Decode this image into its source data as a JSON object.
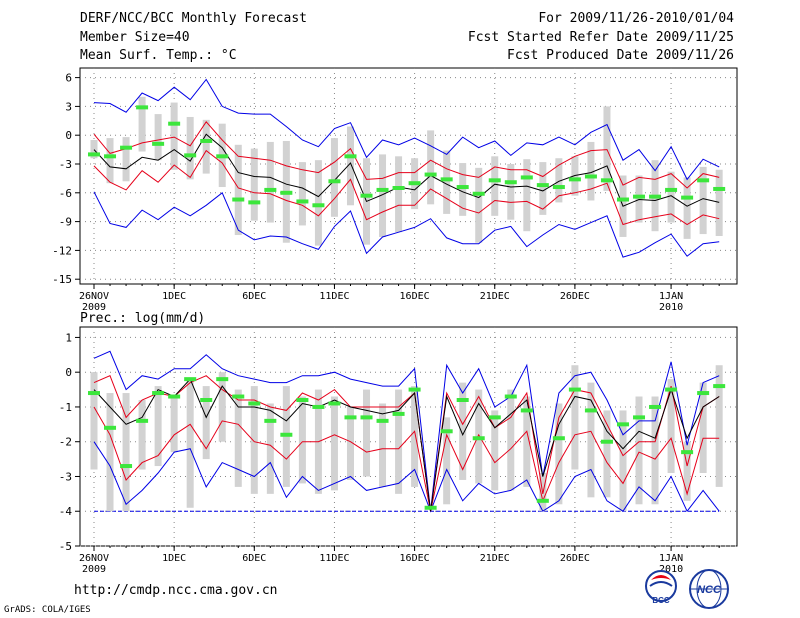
{
  "header": {
    "title": "DERF/NCC/BCC Monthly Forecast",
    "member_size": "Member Size=40",
    "variable": "Mean Surf. Temp.: °C",
    "period": "For 2009/11/26-2010/01/04",
    "start_date": "Fcst Started Refer Date 2009/11/25",
    "produced_date": "Fcst Produced Date 2009/11/26"
  },
  "footer": {
    "url": "http://cmdp.ncc.cma.gov.cn",
    "grads": "GrADS: COLA/IGES",
    "logo1_text": "BCC",
    "logo2_text": "NCC"
  },
  "colors": {
    "max_min": "#0000e6",
    "spread": "#e6001a",
    "mean": "#000000",
    "bar": "#d2d2d2",
    "obs": "#3ce63c",
    "grid": "#888888"
  },
  "chart_data": [
    {
      "type": "line",
      "title": "Mean Surf. Temp.: °C",
      "x": [
        "26NOV",
        "27NOV",
        "28NOV",
        "29NOV",
        "30NOV",
        "1DEC",
        "2DEC",
        "3DEC",
        "4DEC",
        "5DEC",
        "6DEC",
        "7DEC",
        "8DEC",
        "9DEC",
        "10DEC",
        "11DEC",
        "12DEC",
        "13DEC",
        "14DEC",
        "15DEC",
        "16DEC",
        "17DEC",
        "18DEC",
        "19DEC",
        "20DEC",
        "21DEC",
        "22DEC",
        "23DEC",
        "24DEC",
        "25DEC",
        "26DEC",
        "27DEC",
        "28DEC",
        "29DEC",
        "30DEC",
        "31DEC",
        "1JAN",
        "2JAN",
        "3JAN",
        "4JAN"
      ],
      "xticks": [
        {
          "i": 0,
          "label": "26NOV",
          "sub": "2009"
        },
        {
          "i": 5,
          "label": "1DEC"
        },
        {
          "i": 10,
          "label": "6DEC"
        },
        {
          "i": 15,
          "label": "11DEC"
        },
        {
          "i": 20,
          "label": "16DEC"
        },
        {
          "i": 25,
          "label": "21DEC"
        },
        {
          "i": 30,
          "label": "26DEC"
        },
        {
          "i": 36,
          "label": "1JAN",
          "sub": "2010"
        }
      ],
      "ylim": [
        -15.5,
        7
      ],
      "yticks": [
        6,
        3,
        0,
        -3,
        -6,
        -9,
        -12,
        -15
      ],
      "ytick_labels": [
        "6",
        "3",
        "0",
        "-3",
        "-6",
        "-9",
        "-12",
        "-15"
      ],
      "series": [
        {
          "name": "max",
          "values": [
            3.4,
            3.3,
            2.4,
            4.4,
            3.6,
            5.0,
            3.7,
            5.8,
            3.0,
            2.3,
            2.2,
            2.2,
            0.9,
            -0.5,
            -1.2,
            0.7,
            1.3,
            -2.3,
            -0.5,
            -1.0,
            -0.3,
            -1.1,
            -2.0,
            -0.2,
            -1.3,
            -0.6,
            -2.1,
            -0.8,
            -1.0,
            -0.2,
            -1.0,
            0.3,
            1.1,
            -2.6,
            -1.5,
            -3.7,
            -1.2,
            -4.6,
            -2.5,
            -3.3
          ]
        },
        {
          "name": "upper",
          "values": [
            0.1,
            -1.9,
            -1.4,
            -0.8,
            -0.5,
            -0.2,
            -1.1,
            1.4,
            -0.5,
            -2.2,
            -2.4,
            -2.6,
            -3.2,
            -3.6,
            -3.9,
            -2.8,
            -1.4,
            -4.6,
            -4.5,
            -3.9,
            -3.9,
            -2.6,
            -3.5,
            -4.1,
            -4.4,
            -3.3,
            -3.6,
            -3.6,
            -4.3,
            -3.1,
            -2.2,
            -1.6,
            -1.5,
            -5.2,
            -4.4,
            -4.6,
            -4.0,
            -5.5,
            -4.0,
            -4.4
          ]
        },
        {
          "name": "mean",
          "values": [
            -1.5,
            -3.3,
            -3.5,
            -2.3,
            -2.6,
            -1.5,
            -2.7,
            0.1,
            -1.3,
            -3.9,
            -4.3,
            -4.4,
            -5.1,
            -5.5,
            -6.4,
            -4.7,
            -2.9,
            -6.9,
            -6.2,
            -5.4,
            -5.7,
            -4.2,
            -5.1,
            -5.9,
            -6.5,
            -5.1,
            -5.4,
            -5.3,
            -5.8,
            -4.8,
            -4.2,
            -3.9,
            -3.2,
            -7.4,
            -6.7,
            -6.8,
            -6.3,
            -7.4,
            -6.6,
            -7.0
          ]
        },
        {
          "name": "lower",
          "values": [
            -3.2,
            -4.9,
            -5.7,
            -3.7,
            -4.9,
            -3.1,
            -4.4,
            -1.6,
            -2.9,
            -5.5,
            -6.0,
            -6.1,
            -6.8,
            -7.3,
            -8.4,
            -6.6,
            -4.6,
            -8.8,
            -8.0,
            -7.3,
            -7.3,
            -5.6,
            -6.6,
            -7.6,
            -8.1,
            -6.8,
            -7.0,
            -6.9,
            -7.7,
            -6.3,
            -6.0,
            -5.6,
            -5.0,
            -9.3,
            -8.8,
            -8.5,
            -8.2,
            -9.3,
            -8.3,
            -8.7
          ]
        },
        {
          "name": "min",
          "values": [
            -5.9,
            -9.2,
            -9.6,
            -7.8,
            -8.8,
            -7.5,
            -8.4,
            -7.3,
            -6.0,
            -9.9,
            -10.9,
            -10.5,
            -10.6,
            -11.3,
            -11.9,
            -9.5,
            -7.9,
            -12.3,
            -10.6,
            -10.1,
            -9.6,
            -8.7,
            -10.7,
            -11.3,
            -11.3,
            -9.9,
            -9.5,
            -11.6,
            -10.4,
            -9.3,
            -9.8,
            -9.1,
            -8.4,
            -12.7,
            -12.2,
            -11.2,
            -10.3,
            -12.6,
            -11.3,
            -11.1
          ]
        },
        {
          "name": "obs",
          "values": [
            -2.0,
            -2.2,
            -1.3,
            2.9,
            -0.9,
            1.2,
            -2.1,
            -0.6,
            -2.2,
            -6.7,
            -7.0,
            -5.7,
            -6.0,
            -6.9,
            -7.3,
            -4.8,
            -2.2,
            -6.3,
            -5.7,
            -5.5,
            -5.0,
            -4.1,
            -4.6,
            -5.4,
            -6.1,
            -4.7,
            -4.9,
            -4.4,
            -5.2,
            -5.4,
            -4.6,
            -4.3,
            -4.7,
            -6.7,
            -6.4,
            -6.4,
            -5.7,
            -6.5,
            -4.7,
            -5.6
          ]
        },
        {
          "name": "box_top",
          "values": [
            -0.5,
            -0.3,
            -0.2,
            4.0,
            2.2,
            3.4,
            1.9,
            1.6,
            1.2,
            -1.0,
            -1.4,
            -0.7,
            -0.6,
            -2.8,
            -2.6,
            -0.3,
            0.9,
            -2.4,
            -2.0,
            -2.2,
            -2.4,
            0.5,
            -1.6,
            -2.9,
            -3.4,
            -2.2,
            -3.0,
            -2.5,
            -2.8,
            -2.4,
            -2.2,
            -0.7,
            3.0,
            -4.2,
            -4.2,
            -2.6,
            -3.8,
            -4.4,
            -3.3,
            -3.6
          ]
        },
        {
          "name": "box_bottom",
          "values": [
            -2.4,
            -5.0,
            -4.8,
            -1.7,
            -2.6,
            -3.6,
            -4.6,
            -4.0,
            -5.4,
            -10.4,
            -8.9,
            -9.1,
            -11.2,
            -9.4,
            -11.5,
            -8.5,
            -7.3,
            -11.4,
            -10.6,
            -10.1,
            -7.7,
            -7.2,
            -8.2,
            -8.4,
            -11.2,
            -8.4,
            -8.8,
            -10.0,
            -8.3,
            -7.0,
            -6.3,
            -6.8,
            -5.8,
            -10.6,
            -9.1,
            -10.0,
            -9.1,
            -10.8,
            -10.3,
            -10.5
          ]
        }
      ]
    },
    {
      "type": "line",
      "title": "Prec.: log(mm/d)",
      "x": [
        "26NOV",
        "27NOV",
        "28NOV",
        "29NOV",
        "30NOV",
        "1DEC",
        "2DEC",
        "3DEC",
        "4DEC",
        "5DEC",
        "6DEC",
        "7DEC",
        "8DEC",
        "9DEC",
        "10DEC",
        "11DEC",
        "12DEC",
        "13DEC",
        "14DEC",
        "15DEC",
        "16DEC",
        "17DEC",
        "18DEC",
        "19DEC",
        "20DEC",
        "21DEC",
        "22DEC",
        "23DEC",
        "24DEC",
        "25DEC",
        "26DEC",
        "27DEC",
        "28DEC",
        "29DEC",
        "30DEC",
        "31DEC",
        "1JAN",
        "2JAN",
        "3JAN",
        "4JAN"
      ],
      "xticks": [
        {
          "i": 0,
          "label": "26NOV",
          "sub": "2009"
        },
        {
          "i": 5,
          "label": "1DEC"
        },
        {
          "i": 10,
          "label": "6DEC"
        },
        {
          "i": 15,
          "label": "11DEC"
        },
        {
          "i": 20,
          "label": "16DEC"
        },
        {
          "i": 25,
          "label": "21DEC"
        },
        {
          "i": 30,
          "label": "26DEC"
        },
        {
          "i": 36,
          "label": "1JAN",
          "sub": "2010"
        }
      ],
      "ylim": [
        -5,
        1.3
      ],
      "yticks": [
        1,
        0,
        -1,
        -2,
        -3,
        -4,
        -5
      ],
      "ytick_labels": [
        "1",
        "0",
        "-1",
        "-2",
        "-3",
        "-4",
        "-5"
      ],
      "baseline": -4,
      "series": [
        {
          "name": "max",
          "values": [
            0.4,
            0.6,
            -0.5,
            -0.1,
            -0.2,
            0.1,
            0.1,
            0.5,
            0.1,
            -0.1,
            -0.2,
            -0.3,
            -0.3,
            -0.1,
            -0.1,
            0.0,
            -0.2,
            -0.3,
            -0.4,
            -0.4,
            0.1,
            -4.0,
            0.2,
            -0.6,
            0.1,
            -1.0,
            -0.7,
            0.2,
            -3.0,
            -0.6,
            -0.1,
            0.0,
            -0.8,
            -1.8,
            -1.4,
            -1.4,
            0.3,
            -2.1,
            -0.3,
            -0.1
          ]
        },
        {
          "name": "upper",
          "values": [
            -0.3,
            -0.1,
            -1.3,
            -0.8,
            -0.6,
            -0.7,
            -0.3,
            -0.1,
            -0.5,
            -0.8,
            -0.8,
            -1.0,
            -1.1,
            -0.6,
            -0.8,
            -0.5,
            -1.0,
            -1.0,
            -1.0,
            -1.0,
            -0.6,
            -4.0,
            -0.6,
            -1.5,
            -0.7,
            -1.6,
            -1.3,
            -0.6,
            -3.5,
            -1.3,
            -0.5,
            -0.6,
            -1.5,
            -2.4,
            -2.0,
            -2.0,
            -0.4,
            -2.7,
            -1.0,
            -0.7
          ]
        },
        {
          "name": "mean",
          "values": [
            -0.5,
            -1.0,
            -1.5,
            -1.3,
            -0.5,
            -0.7,
            -0.2,
            -1.3,
            -0.4,
            -1.0,
            -1.0,
            -1.1,
            -1.4,
            -0.9,
            -1.0,
            -0.8,
            -1.0,
            -1.1,
            -1.2,
            -1.1,
            -0.6,
            -4.0,
            -0.7,
            -1.8,
            -0.9,
            -1.6,
            -1.2,
            -0.8,
            -3.0,
            -1.5,
            -0.7,
            -0.8,
            -1.7,
            -2.2,
            -1.7,
            -1.9,
            -0.5,
            -1.9,
            -1.0,
            -0.7
          ]
        },
        {
          "name": "lower",
          "values": [
            -1.0,
            -1.8,
            -3.1,
            -2.6,
            -2.4,
            -1.8,
            -1.5,
            -2.2,
            -1.4,
            -1.5,
            -2.0,
            -2.1,
            -2.5,
            -2.0,
            -2.0,
            -1.8,
            -2.0,
            -2.3,
            -2.2,
            -2.2,
            -1.7,
            -4.0,
            -1.8,
            -2.8,
            -1.8,
            -2.6,
            -2.2,
            -1.7,
            -3.7,
            -2.6,
            -1.8,
            -1.7,
            -2.6,
            -3.2,
            -2.3,
            -2.5,
            -1.9,
            -3.5,
            -1.9,
            -1.9
          ]
        },
        {
          "name": "min",
          "values": [
            -2.0,
            -2.7,
            -3.8,
            -3.4,
            -2.9,
            -2.3,
            -2.2,
            -3.3,
            -2.6,
            -2.8,
            -3.0,
            -2.6,
            -3.6,
            -3.0,
            -3.4,
            -3.2,
            -3.0,
            -3.4,
            -3.3,
            -3.2,
            -2.8,
            -4.0,
            -2.8,
            -3.7,
            -3.2,
            -3.5,
            -3.4,
            -3.1,
            -4.0,
            -3.7,
            -3.0,
            -2.8,
            -3.7,
            -4.0,
            -3.3,
            -3.7,
            -3.0,
            -4.0,
            -3.4,
            -4.0
          ]
        },
        {
          "name": "obs",
          "values": [
            -0.6,
            -1.6,
            -2.7,
            -1.4,
            -0.6,
            -0.7,
            -0.2,
            -0.8,
            -0.2,
            -0.7,
            -0.9,
            -1.4,
            -1.8,
            -0.8,
            -1.0,
            -0.9,
            -1.3,
            -1.3,
            -1.4,
            -1.2,
            -0.5,
            -3.9,
            -1.7,
            -0.8,
            -1.9,
            -1.3,
            -0.7,
            -1.1,
            -3.7,
            -1.9,
            -0.5,
            -1.1,
            -2.0,
            -1.5,
            -1.3,
            -1.0,
            -0.5,
            -2.3,
            -0.6,
            -0.4
          ]
        },
        {
          "name": "box_top",
          "values": [
            0.0,
            -0.6,
            -0.6,
            -0.8,
            -0.4,
            -0.7,
            -0.2,
            -0.4,
            0.0,
            -0.5,
            -0.4,
            -0.9,
            -0.4,
            -0.7,
            -0.5,
            -0.7,
            -1.0,
            -0.5,
            -0.9,
            -0.5,
            -0.4,
            -4.0,
            -1.3,
            -0.3,
            -0.5,
            -1.1,
            -0.5,
            -0.7,
            -2.9,
            -0.9,
            0.2,
            -0.3,
            -1.1,
            -1.1,
            -0.7,
            -0.7,
            -0.2,
            -2.0,
            -0.3,
            0.2
          ]
        },
        {
          "name": "box_bottom",
          "values": [
            -2.8,
            -4.0,
            -4.0,
            -2.8,
            -2.7,
            -2.3,
            -3.9,
            -2.5,
            -2.0,
            -3.3,
            -3.5,
            -3.5,
            -3.3,
            -3.2,
            -3.5,
            -3.4,
            -3.1,
            -3.0,
            -3.3,
            -3.5,
            -3.3,
            -4.0,
            -3.8,
            -3.1,
            -3.2,
            -3.4,
            -3.4,
            -3.3,
            -4.0,
            -3.8,
            -2.8,
            -3.6,
            -3.6,
            -4.0,
            -3.8,
            -3.8,
            -2.9,
            -3.7,
            -2.9,
            -3.3
          ]
        }
      ]
    }
  ]
}
